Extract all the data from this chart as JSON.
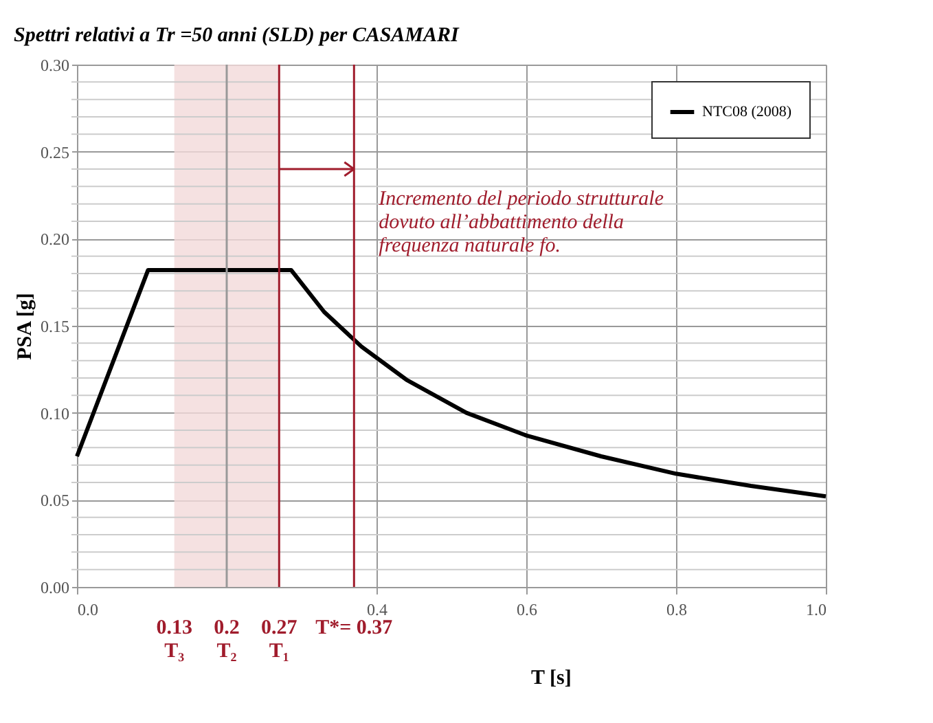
{
  "chart_data": {
    "type": "line",
    "title": "Spettri relativi a Tr =50 anni (SLD) per CASAMARI",
    "xlabel": "T [s]",
    "ylabel": "PSA [g]",
    "x": [
      0.0,
      0.095,
      0.286,
      0.33,
      0.38,
      0.44,
      0.52,
      0.6,
      0.7,
      0.8,
      0.9,
      1.0
    ],
    "series": [
      {
        "name": "NTC08 (2008)",
        "color": "#000000",
        "values": [
          0.075,
          0.182,
          0.182,
          0.158,
          0.138,
          0.119,
          0.1,
          0.087,
          0.075,
          0.065,
          0.058,
          0.052
        ]
      },
      {
        "type": "line",
        "color": "#a01c2c",
        "x": [
          0.27,
          0.37
        ],
        "values": [
          0.24,
          0.24
        ]
      }
    ],
    "xlim": [
      0.0,
      1.0
    ],
    "ylim": [
      0.0,
      0.3
    ],
    "xticks": [
      {
        "value": 0.0,
        "label": "0.0"
      },
      {
        "value": 0.4,
        "label": "0.4"
      },
      {
        "value": 0.6,
        "label": "0.6"
      },
      {
        "value": 0.8,
        "label": "0.8"
      },
      {
        "value": 1.0,
        "label": "1.0"
      }
    ],
    "yticks": [
      {
        "value": 0.0,
        "label": "0.00"
      },
      {
        "value": 0.01,
        "label": null
      },
      {
        "value": 0.02,
        "label": null
      },
      {
        "value": 0.03,
        "label": null
      },
      {
        "value": 0.04,
        "label": null
      },
      {
        "value": 0.05,
        "label": "0.05"
      },
      {
        "value": 0.06,
        "label": null
      },
      {
        "value": 0.07,
        "label": null
      },
      {
        "value": 0.08,
        "label": null
      },
      {
        "value": 0.09,
        "label": null
      },
      {
        "value": 0.1,
        "label": "0.10"
      },
      {
        "value": 0.11,
        "label": null
      },
      {
        "value": 0.12,
        "label": null
      },
      {
        "value": 0.13,
        "label": null
      },
      {
        "value": 0.14,
        "label": null
      },
      {
        "value": 0.15,
        "label": "0.15"
      },
      {
        "value": 0.16,
        "label": null
      },
      {
        "value": 0.17,
        "label": null
      },
      {
        "value": 0.18,
        "label": null
      },
      {
        "value": 0.19,
        "label": null
      },
      {
        "value": 0.2,
        "label": "0.20"
      },
      {
        "value": 0.21,
        "label": null
      },
      {
        "value": 0.22,
        "label": null
      },
      {
        "value": 0.23,
        "label": null
      },
      {
        "value": 0.24,
        "label": null
      },
      {
        "value": 0.25,
        "label": "0.25"
      },
      {
        "value": 0.26,
        "label": null
      },
      {
        "value": 0.27,
        "label": null
      },
      {
        "value": 0.28,
        "label": null
      },
      {
        "value": 0.29,
        "label": null
      },
      {
        "value": 0.3,
        "label": "0.30"
      }
    ],
    "bands": [
      {
        "axis": "x",
        "from": 0.13,
        "to": 0.27,
        "color": "#f2d9d9",
        "label": "0.13\nT₃"
      }
    ],
    "ref_lines": [
      {
        "axis": "x",
        "value": 0.2,
        "label": "0.2\nT₂",
        "color": "#999999"
      },
      {
        "axis": "x",
        "value": 0.27,
        "label": "0.27\nT₁",
        "color": "#a01c2c"
      },
      {
        "axis": "x",
        "value": 0.37,
        "label": "T*= 0.37",
        "color": "#a01c2c"
      }
    ],
    "annotations": [
      {
        "text": "Incremento del periodo strutturale\n dovuto all’abbattimento della\nfrequenza naturale fo.",
        "x": 0.37,
        "y": 0.24
      }
    ],
    "grid": true,
    "legend": "top right",
    "marker": "none",
    "line_style": "solid"
  }
}
